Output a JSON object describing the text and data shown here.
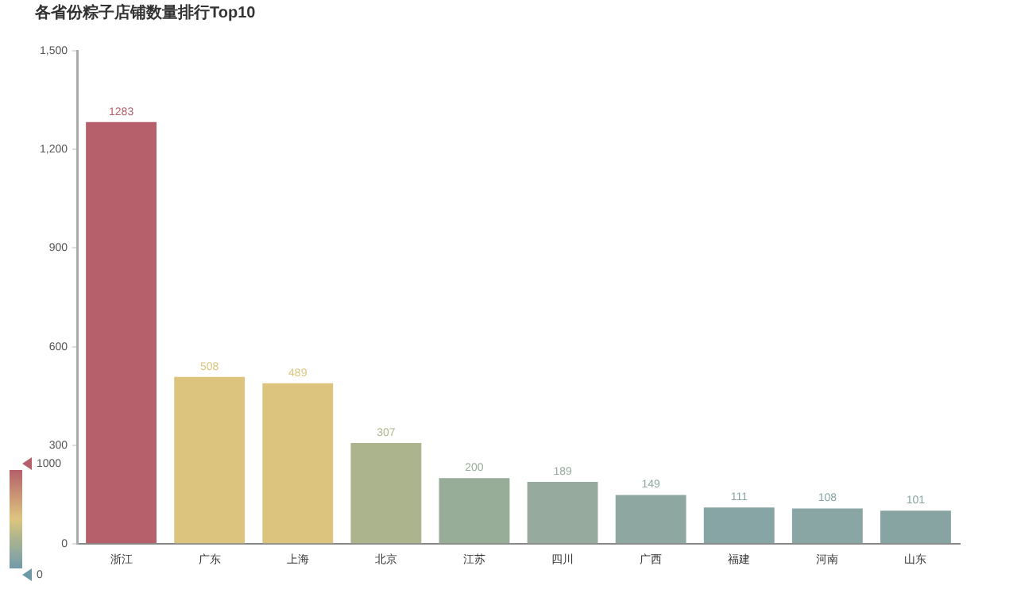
{
  "chart_data": {
    "type": "bar",
    "title": "各省份粽子店铺数量排行Top10",
    "categories": [
      "浙江",
      "广东",
      "上海",
      "北京",
      "江苏",
      "四川",
      "广西",
      "福建",
      "河南",
      "山东"
    ],
    "values": [
      1283,
      508,
      489,
      307,
      200,
      189,
      149,
      111,
      108,
      101
    ],
    "colors": [
      "#b5606a",
      "#dcc47f",
      "#dcc47f",
      "#acb48e",
      "#98ad98",
      "#97aa9e",
      "#8ea7a0",
      "#88a5a6",
      "#89a6a4",
      "#87a4a2"
    ],
    "ylim": [
      0,
      1500
    ],
    "yticks": [
      0,
      {
        "value": 300,
        "label": "300"
      },
      {
        "value": 600,
        "label": "600"
      },
      {
        "value": 900,
        "label": "900"
      },
      {
        "value": 1200,
        "label": "1,200"
      },
      {
        "value": 1500,
        "label": "1,500"
      }
    ],
    "grid": false,
    "data_labels": true,
    "legend": false,
    "clim": [
      0,
      1000
    ],
    "cticks": [
      0,
      1000
    ]
  }
}
